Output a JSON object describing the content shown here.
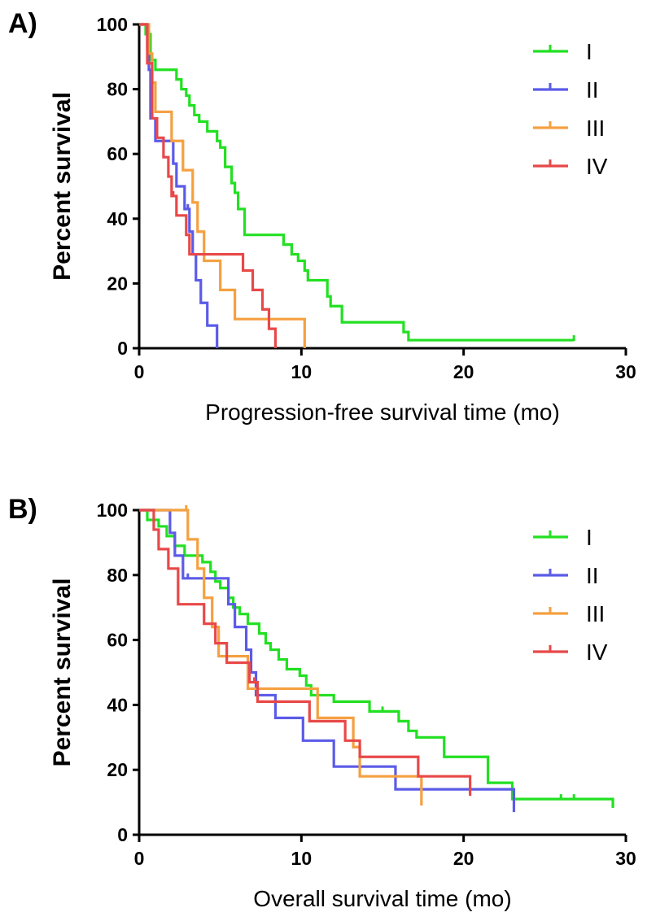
{
  "chart_data": [
    {
      "panel": "A)",
      "type": "line",
      "step": true,
      "xlabel": "Progression-free survival time (mo)",
      "ylabel": "Percent survival",
      "xlim": [
        0,
        30
      ],
      "ylim": [
        0,
        100
      ],
      "xticks": [
        0,
        10,
        20,
        30
      ],
      "yticks": [
        0,
        20,
        40,
        60,
        80,
        100
      ],
      "legend_position": "top-right",
      "series": [
        {
          "name": "I",
          "color": "#22e022",
          "x": [
            0,
            0.4,
            0.7,
            1.0,
            2.3,
            2.6,
            2.9,
            3.1,
            3.4,
            3.7,
            4.2,
            4.8,
            5.0,
            5.3,
            5.7,
            5.9,
            6.1,
            6.5,
            8.9,
            9.4,
            9.8,
            10.2,
            10.4,
            11.6,
            11.8,
            12.5,
            16.3,
            16.6,
            26.8
          ],
          "y": [
            100,
            97,
            89,
            86,
            83,
            80,
            78,
            75,
            72,
            70,
            67,
            64,
            62,
            56,
            51,
            48,
            43,
            35,
            32,
            29,
            27,
            24,
            21,
            16,
            13,
            8,
            5,
            2.5,
            2.5
          ],
          "censored_x": [
            26.8
          ]
        },
        {
          "name": "II",
          "color": "#5b5be8",
          "x": [
            0,
            0.5,
            0.6,
            0.7,
            1.0,
            1.5,
            2.1,
            2.3,
            2.8,
            3.1,
            3.3,
            3.5,
            3.8,
            4.2,
            4.8
          ],
          "y": [
            100,
            93,
            86,
            71,
            64,
            64,
            57,
            50,
            43,
            36,
            29,
            21,
            14,
            7,
            0
          ],
          "censored_x": [
            0.6,
            2.1,
            3.0
          ]
        },
        {
          "name": "III",
          "color": "#f5a040",
          "x": [
            0,
            0.6,
            0.8,
            1.0,
            2.0,
            2.7,
            3.3,
            3.6,
            4.0,
            5.0,
            5.9,
            10.2
          ],
          "y": [
            100,
            91,
            82,
            73,
            64,
            55,
            45,
            36,
            27,
            18,
            9,
            0
          ],
          "censored_x": [
            0.8,
            3.3
          ]
        },
        {
          "name": "IV",
          "color": "#e84848",
          "x": [
            0,
            0.5,
            0.8,
            1.1,
            1.5,
            1.8,
            2.0,
            2.3,
            2.9,
            3.1,
            6.4,
            7.0,
            7.6,
            8.0,
            8.4
          ],
          "y": [
            100,
            88,
            71,
            65,
            59,
            53,
            47,
            41,
            35,
            29,
            24,
            18,
            12,
            6,
            0
          ],
          "censored_x": [
            2.1
          ]
        }
      ]
    },
    {
      "panel": "B)",
      "type": "line",
      "step": true,
      "xlabel": "Overall survival time (mo)",
      "ylabel": "Percent survival",
      "xlim": [
        0,
        30
      ],
      "ylim": [
        0,
        100
      ],
      "xticks": [
        0,
        10,
        20,
        30
      ],
      "yticks": [
        0,
        20,
        40,
        60,
        80,
        100
      ],
      "legend_position": "top-right",
      "series": [
        {
          "name": "I",
          "color": "#22e022",
          "x": [
            0,
            0.5,
            1.2,
            1.7,
            2.2,
            2.8,
            3.9,
            4.4,
            4.7,
            5.0,
            5.5,
            5.8,
            6.2,
            6.7,
            7.4,
            7.8,
            8.1,
            8.6,
            9.1,
            9.9,
            10.3,
            10.6,
            12.0,
            14.2,
            16.0,
            16.6,
            17.1,
            18.8,
            21.5,
            23.0,
            29.2
          ],
          "y": [
            100,
            97,
            95,
            92,
            89,
            86,
            84,
            81,
            78,
            76,
            73,
            70,
            68,
            65,
            62,
            59,
            57,
            54,
            51,
            49,
            46,
            43,
            41,
            38,
            35,
            32,
            30,
            24,
            16,
            11,
            8.5
          ],
          "censored_x": [
            15.0,
            26.0,
            26.8,
            29.2
          ]
        },
        {
          "name": "II",
          "color": "#5b5be8",
          "x": [
            0,
            1.9,
            2.2,
            2.7,
            3.5,
            5.5,
            5.9,
            6.6,
            6.9,
            7.2,
            8.4,
            10.1,
            12.0,
            15.8,
            23.1
          ],
          "y": [
            100,
            93,
            86,
            79,
            79,
            71,
            64,
            57,
            50,
            43,
            36,
            29,
            21,
            14,
            7
          ],
          "censored_x": [
            3.0,
            5.5
          ]
        },
        {
          "name": "III",
          "color": "#f5a040",
          "x": [
            0,
            2.7,
            3.0,
            3.6,
            4.0,
            4.5,
            4.9,
            5.5,
            6.7,
            11.0,
            13.2,
            13.6,
            17.4
          ],
          "y": [
            100,
            100,
            91,
            82,
            73,
            64,
            55,
            55,
            45,
            36,
            27,
            18,
            9
          ],
          "censored_x": [
            2.9
          ]
        },
        {
          "name": "IV",
          "color": "#e84848",
          "x": [
            0,
            0.9,
            1.2,
            1.8,
            2.4,
            4.0,
            4.7,
            5.4,
            6.8,
            7.3,
            10.5,
            12.7,
            13.6,
            17.2,
            20.4
          ],
          "y": [
            100,
            94,
            88,
            82,
            71,
            65,
            59,
            53,
            47,
            41,
            35,
            29,
            24,
            18,
            12
          ],
          "censored_x": [
            7.1
          ]
        }
      ]
    }
  ]
}
